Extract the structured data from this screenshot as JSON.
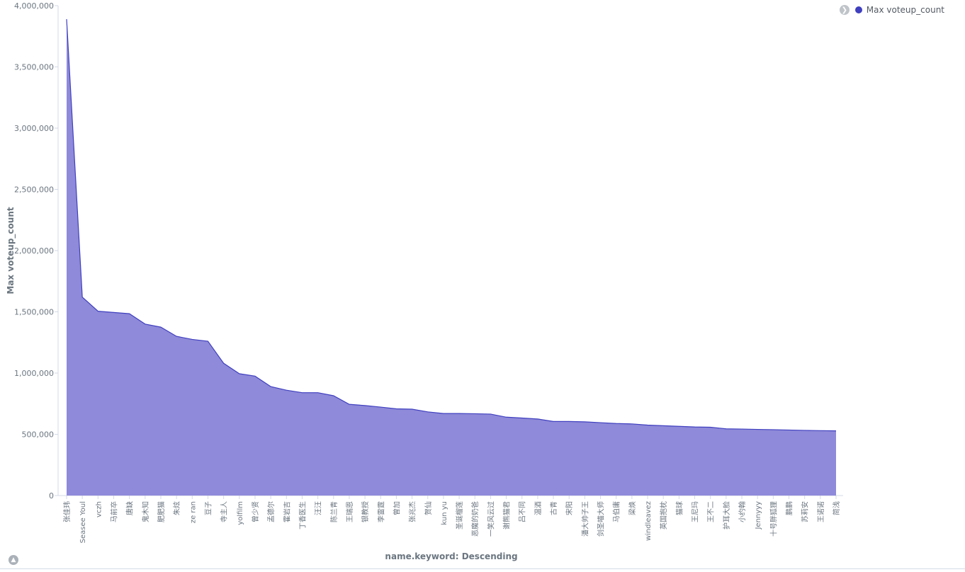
{
  "legend": {
    "toggle_icon": "chevron-right-icon",
    "label": "Max voteup_count",
    "color": "#3f3fbf"
  },
  "collapse_icon": "chevron-up-icon",
  "chart_data": {
    "type": "area",
    "ylabel": "Max voteup_count",
    "xlabel": "name.keyword: Descending",
    "ylim": [
      0,
      4000000
    ],
    "yticks": [
      0,
      500000,
      1000000,
      1500000,
      2000000,
      2500000,
      3000000,
      3500000,
      4000000
    ],
    "ytick_labels": [
      "0",
      "500,000",
      "1,000,000",
      "1,500,000",
      "2,000,000",
      "2,500,000",
      "3,000,000",
      "3,500,000",
      "4,000,000"
    ],
    "fill_color": "#8f8ad9",
    "line_color": "#3f3fbf",
    "grid": false,
    "legend_position": "top-right",
    "categories": [
      "张佳玮",
      "Seasee Youl",
      "vczh",
      "马前卒",
      "唐缺",
      "鬼木知",
      "肥肥猫",
      "朱炫",
      "ze ran",
      "豆子",
      "寺主人",
      "yolfilm",
      "曾少贤",
      "孟德尔",
      "霍岩吉",
      "丁香医生",
      "汪汪",
      "陈兰青",
      "王瑞恩",
      "银教授",
      "李雷霆",
      "曾加",
      "张兆杰",
      "贺仙",
      "kun yu",
      "圣诞榴莲",
      "恶魔的奶爸",
      "一笑风云过",
      "谢熊猫君",
      "吕不同",
      "温酒",
      "古青",
      "宋阳",
      "潘大帅子王",
      "剑圣喵大师",
      "马伯庸",
      "梁焕",
      "windleavez",
      "英国抱枕",
      "猫球",
      "王尼玛",
      "王不二",
      "护耳大脸",
      "小约翰",
      "Jennyyy",
      "十号胖狐狸",
      "鹏鹏",
      "苏莉安",
      "王诺诺",
      "简浅"
    ],
    "values": [
      3890000,
      1620000,
      1505000,
      1495000,
      1485000,
      1400000,
      1375000,
      1300000,
      1275000,
      1260000,
      1080000,
      995000,
      975000,
      890000,
      860000,
      840000,
      840000,
      815000,
      745000,
      735000,
      722000,
      708000,
      705000,
      683000,
      670000,
      670000,
      668000,
      665000,
      640000,
      633000,
      625000,
      605000,
      605000,
      602000,
      595000,
      588000,
      585000,
      575000,
      570000,
      565000,
      560000,
      558000,
      545000,
      543000,
      540000,
      538000,
      535000,
      532000,
      530000,
      528000
    ]
  }
}
